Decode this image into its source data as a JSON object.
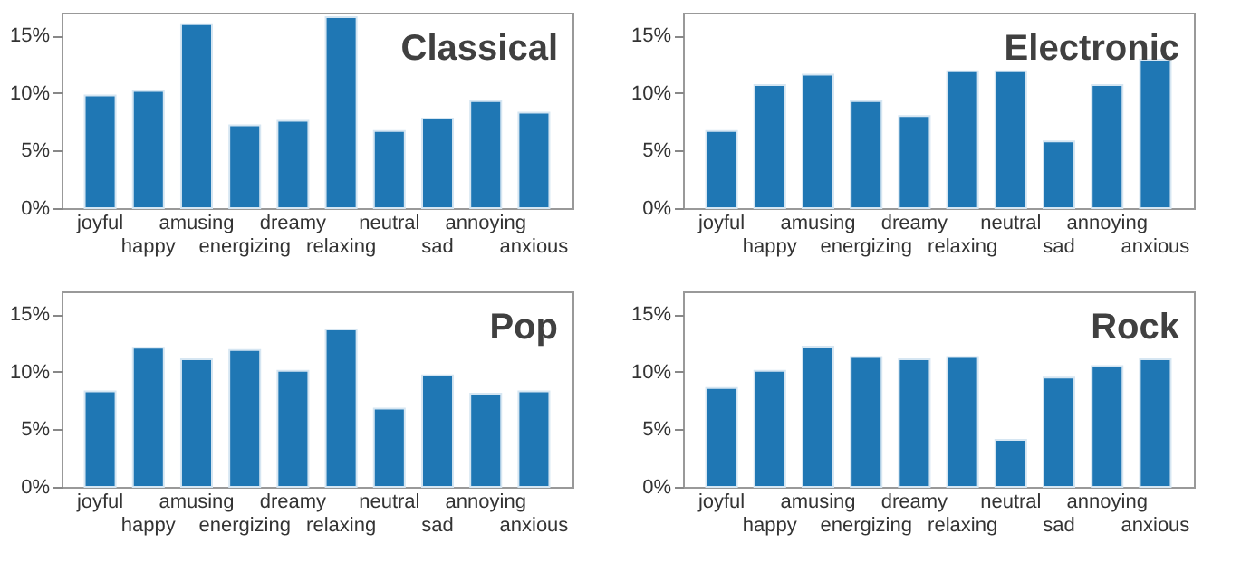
{
  "chart_data": [
    {
      "type": "bar",
      "title": "Classical",
      "categories": [
        "joyful",
        "happy",
        "amusing",
        "energizing",
        "dreamy",
        "relaxing",
        "neutral",
        "sad",
        "annoying",
        "anxious"
      ],
      "values": [
        9.8,
        10.2,
        16.0,
        7.2,
        7.6,
        16.6,
        6.7,
        7.8,
        9.3,
        8.3
      ],
      "color": "#1f77b4",
      "ylim": [
        0,
        17
      ],
      "yticks": [
        {
          "value": 0,
          "label": "0%"
        },
        {
          "value": 5,
          "label": "5%"
        },
        {
          "value": 10,
          "label": "10%"
        },
        {
          "value": 15,
          "label": "15%"
        }
      ],
      "grid": false
    },
    {
      "type": "bar",
      "title": "Electronic",
      "categories": [
        "joyful",
        "happy",
        "amusing",
        "energizing",
        "dreamy",
        "relaxing",
        "neutral",
        "sad",
        "annoying",
        "anxious"
      ],
      "values": [
        6.7,
        10.7,
        11.6,
        9.3,
        8.0,
        11.9,
        11.9,
        5.8,
        10.7,
        12.9
      ],
      "color": "#1f77b4",
      "ylim": [
        0,
        17
      ],
      "yticks": [
        {
          "value": 0,
          "label": "0%"
        },
        {
          "value": 5,
          "label": "5%"
        },
        {
          "value": 10,
          "label": "10%"
        },
        {
          "value": 15,
          "label": "15%"
        }
      ],
      "grid": false
    },
    {
      "type": "bar",
      "title": "Pop",
      "categories": [
        "joyful",
        "happy",
        "amusing",
        "energizing",
        "dreamy",
        "relaxing",
        "neutral",
        "sad",
        "annoying",
        "anxious"
      ],
      "values": [
        8.3,
        12.1,
        11.1,
        11.9,
        10.1,
        13.7,
        6.8,
        9.7,
        8.1,
        8.3
      ],
      "color": "#1f77b4",
      "ylim": [
        0,
        17
      ],
      "yticks": [
        {
          "value": 0,
          "label": "0%"
        },
        {
          "value": 5,
          "label": "5%"
        },
        {
          "value": 10,
          "label": "10%"
        },
        {
          "value": 15,
          "label": "15%"
        }
      ],
      "grid": false
    },
    {
      "type": "bar",
      "title": "Rock",
      "categories": [
        "joyful",
        "happy",
        "amusing",
        "energizing",
        "dreamy",
        "relaxing",
        "neutral",
        "sad",
        "annoying",
        "anxious"
      ],
      "values": [
        8.6,
        10.1,
        12.2,
        11.3,
        11.1,
        11.3,
        4.1,
        9.5,
        10.5,
        11.1
      ],
      "color": "#1f77b4",
      "ylim": [
        0,
        17
      ],
      "yticks": [
        {
          "value": 0,
          "label": "0%"
        },
        {
          "value": 5,
          "label": "5%"
        },
        {
          "value": 10,
          "label": "10%"
        },
        {
          "value": 15,
          "label": "15%"
        }
      ],
      "grid": false
    }
  ]
}
